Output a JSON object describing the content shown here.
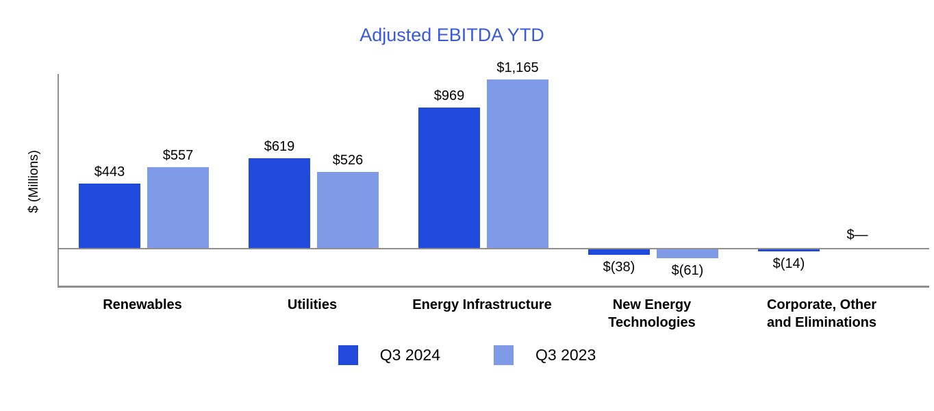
{
  "chart_data": {
    "type": "bar",
    "title": "Adjusted EBITDA YTD",
    "ylabel": "$ (Millions)",
    "title_color": "#3A5BD9",
    "axis_color": "#8F8F8F",
    "grid": false,
    "legend_position": "bottom",
    "ylim": [
      -100,
      1250
    ],
    "categories": [
      "Renewables",
      "Utilities",
      "Energy Infrastructure",
      "New Energy\nTechnologies",
      "Corporate, Other\nand Eliminations"
    ],
    "series": [
      {
        "name": "Q3 2024",
        "color": "#2149DC",
        "values": [
          443,
          619,
          969,
          -38,
          -14
        ],
        "labels": [
          "$443",
          "$619",
          "$969",
          "$(38)",
          "$(14)"
        ]
      },
      {
        "name": "Q3 2023",
        "color": "#7F9BE8",
        "values": [
          557,
          526,
          1165,
          -61,
          null
        ],
        "labels": [
          "$557",
          "$526",
          "$1,165",
          "$(61)",
          "$—"
        ]
      }
    ]
  }
}
